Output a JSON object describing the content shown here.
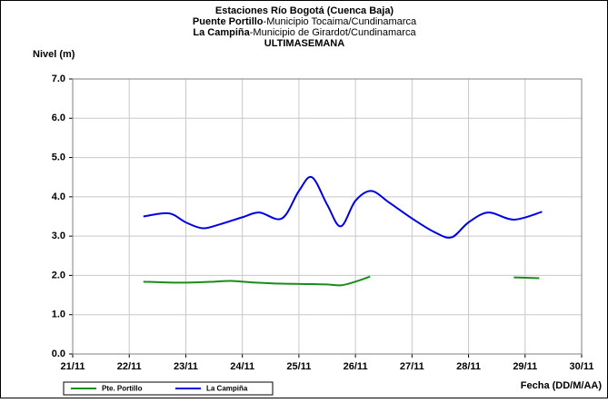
{
  "chart_data": {
    "type": "line",
    "title": "Estaciones Río Bogotá (Cuenca Baja)",
    "subtitle_lines": [
      {
        "bold": "Puente Portillo",
        "text": "-Municipio Tocaima/Cundinamarca"
      },
      {
        "bold": "La Campiña",
        "text": "-Municipio de Girardot/Cundinamarca"
      }
    ],
    "period": "ULTIMASEMANA",
    "y_label": "Nivel (m)",
    "x_label": "Fecha (DD/M/AA)",
    "xlim": [
      21,
      30
    ],
    "xticks": [
      {
        "value": 21,
        "label": "21/11"
      },
      {
        "value": 22,
        "label": "22/11"
      },
      {
        "value": 23,
        "label": "23/11"
      },
      {
        "value": 24,
        "label": "24/11"
      },
      {
        "value": 25,
        "label": "25/11"
      },
      {
        "value": 26,
        "label": "26/11"
      },
      {
        "value": 27,
        "label": "27/11"
      },
      {
        "value": 28,
        "label": "28/11"
      },
      {
        "value": 29,
        "label": "29/11"
      },
      {
        "value": 30,
        "label": "30/11"
      }
    ],
    "ylim": [
      0,
      7
    ],
    "yticks": [
      {
        "value": 0,
        "label": "0.0"
      },
      {
        "value": 1,
        "label": "1.0"
      },
      {
        "value": 2,
        "label": "2.0"
      },
      {
        "value": 3,
        "label": "3.0"
      },
      {
        "value": 4,
        "label": "4.0"
      },
      {
        "value": 5,
        "label": "5.0"
      },
      {
        "value": 6,
        "label": "6.0"
      },
      {
        "value": 7,
        "label": "7.0"
      }
    ],
    "grid": true,
    "legend": "bottom-left",
    "series": [
      {
        "name": "Pte. Portillo",
        "color": "#1a8c1a",
        "x": [
          22.25,
          22.7,
          23.1,
          23.5,
          23.8,
          24.2,
          24.7,
          25.2,
          25.5,
          25.75,
          26.0,
          26.26,
          28.8,
          29.25
        ],
        "values": [
          1.84,
          1.82,
          1.82,
          1.84,
          1.86,
          1.82,
          1.79,
          1.78,
          1.77,
          1.75,
          1.84,
          1.97,
          1.95,
          1.93
        ]
      },
      {
        "name": "La Campiña",
        "color": "#0000e6",
        "x": [
          22.25,
          22.7,
          23.0,
          23.3,
          23.6,
          24.0,
          24.3,
          24.7,
          25.0,
          25.23,
          25.5,
          25.74,
          26.0,
          26.28,
          26.6,
          27.0,
          27.4,
          27.7,
          28.0,
          28.35,
          28.8,
          29.3
        ],
        "values": [
          3.5,
          3.58,
          3.35,
          3.2,
          3.3,
          3.48,
          3.6,
          3.45,
          4.15,
          4.5,
          3.8,
          3.25,
          3.9,
          4.15,
          3.85,
          3.45,
          3.1,
          2.97,
          3.35,
          3.6,
          3.42,
          3.62
        ]
      }
    ]
  }
}
